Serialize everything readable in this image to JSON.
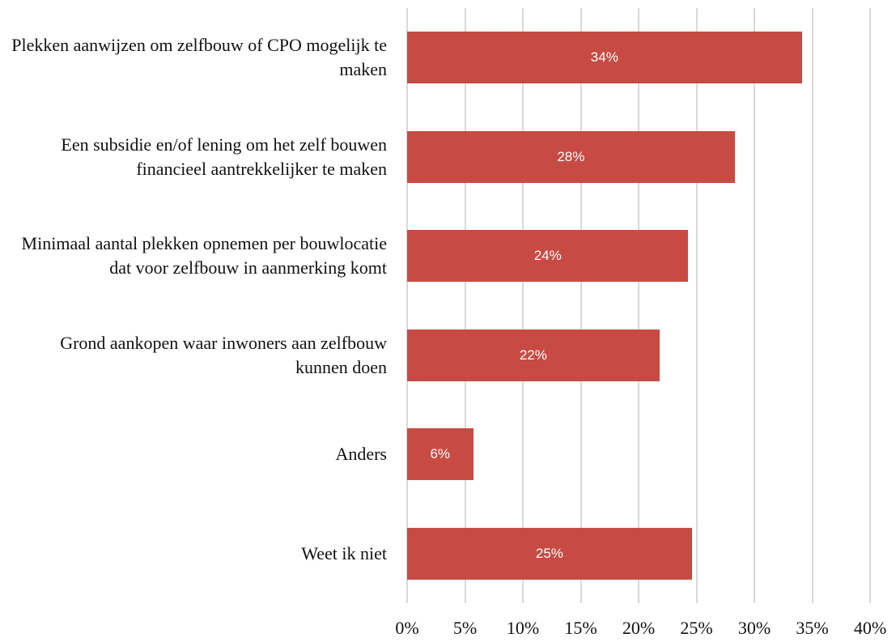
{
  "chart_data": {
    "type": "bar",
    "orientation": "horizontal",
    "categories": [
      "Plekken aanwijzen om zelfbouw of CPO mogelijk te maken",
      "Een subsidie en/of lening om het zelf bouwen financieel aantrekkelijker te maken",
      "Minimaal aantal plekken opnemen per bouwlocatie dat voor zelfbouw in aanmerking komt",
      "Grond aankopen waar inwoners aan zelfbouw kunnen doen",
      "Anders",
      "Weet ik niet"
    ],
    "values": [
      34.1,
      28.3,
      24.3,
      21.8,
      5.7,
      24.6
    ],
    "value_labels": [
      "34%",
      "28%",
      "24%",
      "22%",
      "6%",
      "25%"
    ],
    "color": "#c84b43",
    "xlim": [
      0,
      40
    ],
    "xticks": [
      {
        "value": 0,
        "label": "0%"
      },
      {
        "value": 5,
        "label": "5%"
      },
      {
        "value": 10,
        "label": "10%"
      },
      {
        "value": 15,
        "label": "15%"
      },
      {
        "value": 20,
        "label": "20%"
      },
      {
        "value": 25,
        "label": "25%"
      },
      {
        "value": 30,
        "label": "30%"
      },
      {
        "value": 35,
        "label": "35%"
      },
      {
        "value": 40,
        "label": "40%"
      }
    ],
    "grid": true
  }
}
